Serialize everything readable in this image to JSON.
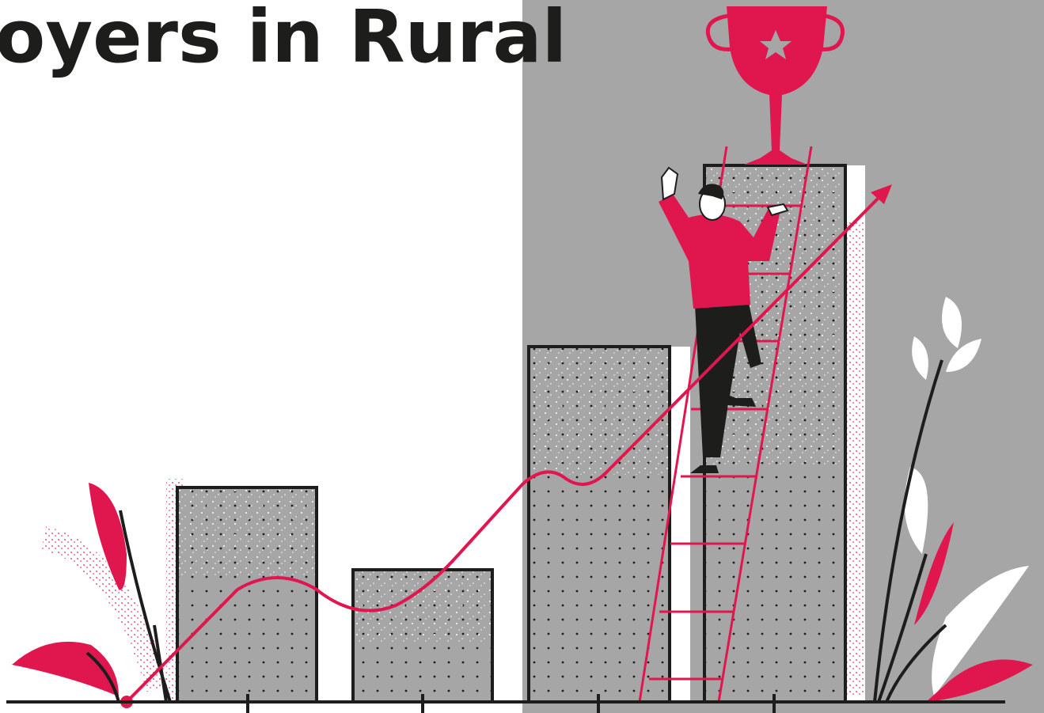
{
  "header": {
    "title": "oyers in Rural"
  }
}
